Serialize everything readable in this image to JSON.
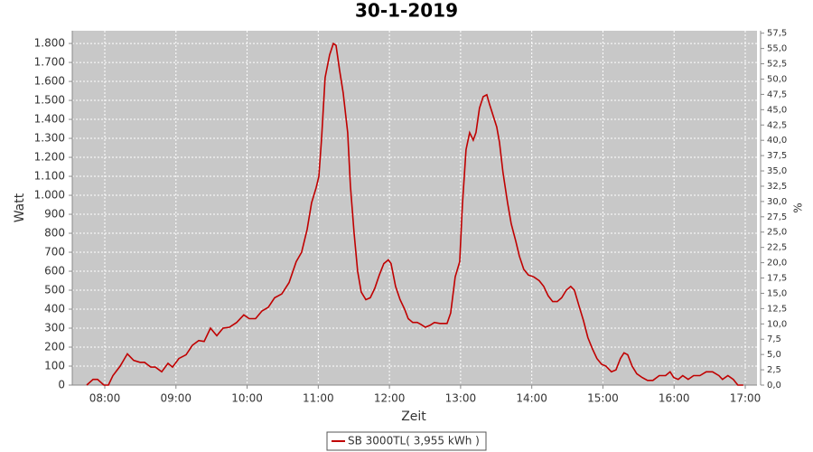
{
  "chart_data": {
    "type": "line",
    "title": "30-1-2019",
    "xlabel": "Zeit",
    "ylabel": "Watt",
    "y2label": "%",
    "x": [
      7.746,
      7.835,
      7.898,
      7.987,
      8.051,
      8.114,
      8.216,
      8.317,
      8.406,
      8.495,
      8.558,
      8.647,
      8.711,
      8.8,
      8.888,
      8.952,
      9.041,
      9.142,
      9.231,
      9.32,
      9.396,
      9.485,
      9.574,
      9.662,
      9.751,
      9.853,
      9.954,
      10.03,
      10.119,
      10.208,
      10.297,
      10.386,
      10.487,
      10.589,
      10.69,
      10.766,
      10.843,
      10.906,
      10.97,
      11.008,
      11.046,
      11.096,
      11.16,
      11.211,
      11.249,
      11.299,
      11.35,
      11.414,
      11.452,
      11.503,
      11.553,
      11.604,
      11.668,
      11.731,
      11.794,
      11.858,
      11.921,
      11.985,
      12.023,
      12.086,
      12.15,
      12.213,
      12.264,
      12.327,
      12.391,
      12.442,
      12.505,
      12.569,
      12.632,
      12.708,
      12.81,
      12.86,
      12.924,
      12.987,
      13.025,
      13.076,
      13.127,
      13.178,
      13.216,
      13.266,
      13.317,
      13.368,
      13.406,
      13.457,
      13.508,
      13.546,
      13.596,
      13.66,
      13.711,
      13.774,
      13.825,
      13.888,
      13.952,
      14.028,
      14.104,
      14.168,
      14.231,
      14.294,
      14.358,
      14.421,
      14.485,
      14.548,
      14.599,
      14.662,
      14.726,
      14.789,
      14.853,
      14.916,
      14.98,
      15.043,
      15.119,
      15.183,
      15.246,
      15.297,
      15.348,
      15.411,
      15.475,
      15.551,
      15.627,
      15.703,
      15.792,
      15.881,
      15.944,
      15.995,
      16.058,
      16.122,
      16.198,
      16.274,
      16.363,
      16.452,
      16.541,
      16.629,
      16.68,
      16.756,
      16.832,
      16.896,
      16.972
    ],
    "series": [
      {
        "name": "SB 3000TL( 3,955 kWh )",
        "color": "#c00000",
        "values": [
          0,
          30,
          30,
          0,
          0,
          50,
          100,
          165,
          130,
          120,
          120,
          95,
          95,
          70,
          115,
          95,
          140,
          160,
          210,
          235,
          230,
          300,
          260,
          300,
          305,
          330,
          370,
          350,
          350,
          390,
          410,
          460,
          480,
          540,
          650,
          700,
          820,
          960,
          1040,
          1100,
          1300,
          1620,
          1740,
          1800,
          1790,
          1660,
          1540,
          1330,
          1050,
          800,
          600,
          490,
          450,
          460,
          510,
          580,
          640,
          660,
          640,
          520,
          450,
          400,
          350,
          330,
          330,
          320,
          305,
          315,
          330,
          325,
          325,
          380,
          570,
          650,
          950,
          1240,
          1330,
          1290,
          1330,
          1460,
          1520,
          1530,
          1480,
          1420,
          1360,
          1280,
          1120,
          960,
          850,
          760,
          680,
          610,
          580,
          570,
          550,
          520,
          470,
          440,
          440,
          460,
          500,
          520,
          500,
          420,
          340,
          250,
          190,
          140,
          110,
          100,
          70,
          80,
          140,
          170,
          160,
          100,
          60,
          40,
          25,
          25,
          50,
          50,
          70,
          40,
          30,
          50,
          30,
          50,
          50,
          70,
          70,
          50,
          30,
          50,
          30,
          0,
          0
        ]
      }
    ],
    "xlim": [
      7.543,
      17.165
    ],
    "xticks": [
      {
        "value": 8,
        "label": "08:00"
      },
      {
        "value": 9,
        "label": "09:00"
      },
      {
        "value": 10,
        "label": "10:00"
      },
      {
        "value": 11,
        "label": "11:00"
      },
      {
        "value": 12,
        "label": "12:00"
      },
      {
        "value": 13,
        "label": "13:00"
      },
      {
        "value": 14,
        "label": "14:00"
      },
      {
        "value": 15,
        "label": "15:00"
      },
      {
        "value": 16,
        "label": "16:00"
      },
      {
        "value": 17,
        "label": "17:00"
      }
    ],
    "ylim": [
      0,
      1867
    ],
    "yticks": [
      0,
      100,
      200,
      300,
      400,
      500,
      600,
      700,
      800,
      900,
      {
        "value": 1000,
        "label": "1.000"
      },
      {
        "value": 1100,
        "label": "1.100"
      },
      {
        "value": 1200,
        "label": "1.200"
      },
      {
        "value": 1300,
        "label": "1.300"
      },
      {
        "value": 1400,
        "label": "1.400"
      },
      {
        "value": 1500,
        "label": "1.500"
      },
      {
        "value": 1600,
        "label": "1.600"
      },
      {
        "value": 1700,
        "label": "1.700"
      },
      {
        "value": 1800,
        "label": "1.800"
      }
    ],
    "y2lim": [
      0,
      57.9
    ],
    "y2ticks": [
      {
        "value": 0,
        "label": "0,0"
      },
      {
        "value": 2.5,
        "label": "2,5"
      },
      {
        "value": 5,
        "label": "5,0"
      },
      {
        "value": 7.5,
        "label": "7,5"
      },
      {
        "value": 10,
        "label": "10,0"
      },
      {
        "value": 12.5,
        "label": "12,5"
      },
      {
        "value": 15,
        "label": "15,0"
      },
      {
        "value": 17.5,
        "label": "17,5"
      },
      {
        "value": 20,
        "label": "20,0"
      },
      {
        "value": 22.5,
        "label": "22,5"
      },
      {
        "value": 25,
        "label": "25,0"
      },
      {
        "value": 27.5,
        "label": "27,5"
      },
      {
        "value": 30,
        "label": "30,0"
      },
      {
        "value": 32.5,
        "label": "32,5"
      },
      {
        "value": 35,
        "label": "35,0"
      },
      {
        "value": 37.5,
        "label": "37,5"
      },
      {
        "value": 40,
        "label": "40,0"
      },
      {
        "value": 42.5,
        "label": "42,5"
      },
      {
        "value": 45,
        "label": "45,0"
      },
      {
        "value": 47.5,
        "label": "47,5"
      },
      {
        "value": 50,
        "label": "50,0"
      },
      {
        "value": 52.5,
        "label": "52,5"
      },
      {
        "value": 55,
        "label": "55,0"
      },
      {
        "value": 57.5,
        "label": "57,5"
      }
    ],
    "grid": true,
    "legend": "bottom"
  }
}
